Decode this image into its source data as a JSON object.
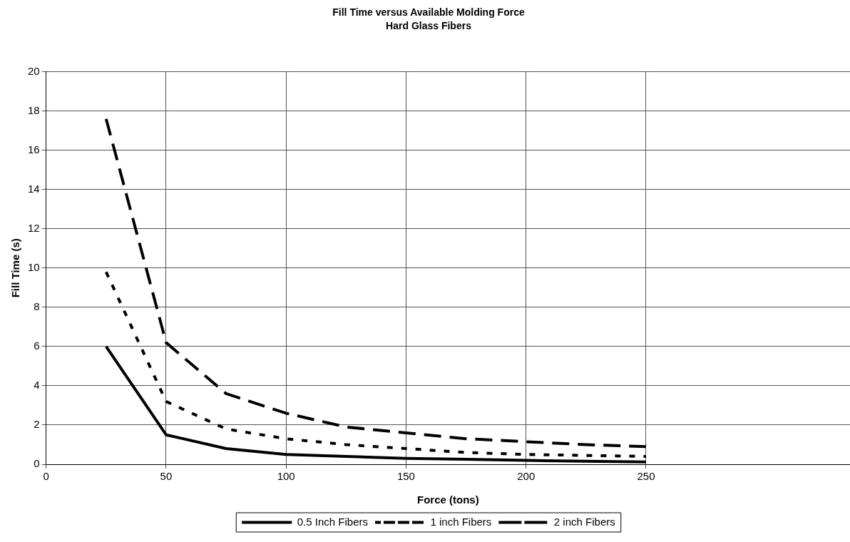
{
  "chart_data": {
    "type": "line",
    "title": "Fill Time versus Available Molding Force",
    "subtitle": "Hard Glass Fibers",
    "xlabel": "Force (tons)",
    "ylabel": "Fill Time (s)",
    "x": [
      25,
      50,
      75,
      100,
      125,
      150,
      175,
      200,
      225,
      250
    ],
    "series": [
      {
        "name": "0.5 Inch Fibers",
        "color": "#000000",
        "line_style": "solid",
        "values": [
          6.0,
          1.5,
          0.8,
          0.5,
          0.4,
          0.3,
          0.25,
          0.2,
          0.15,
          0.12
        ]
      },
      {
        "name": "1 inch Fibers",
        "color": "#000000",
        "line_style": "dotted",
        "values": [
          9.8,
          3.2,
          1.8,
          1.3,
          1.0,
          0.8,
          0.6,
          0.5,
          0.45,
          0.4
        ]
      },
      {
        "name": "2 inch Fibers",
        "color": "#000000",
        "line_style": "dashed",
        "values": [
          17.6,
          6.2,
          3.6,
          2.6,
          1.9,
          1.6,
          1.3,
          1.15,
          1.0,
          0.9
        ]
      }
    ],
    "xlim": [
      0,
      335
    ],
    "xticks": [
      0,
      50,
      100,
      150,
      200,
      250
    ],
    "ylim": [
      0,
      20
    ],
    "yticks": [
      0,
      2,
      4,
      6,
      8,
      10,
      12,
      14,
      16,
      18,
      20
    ],
    "grid": true,
    "legend": "bottom",
    "marker": "none"
  }
}
